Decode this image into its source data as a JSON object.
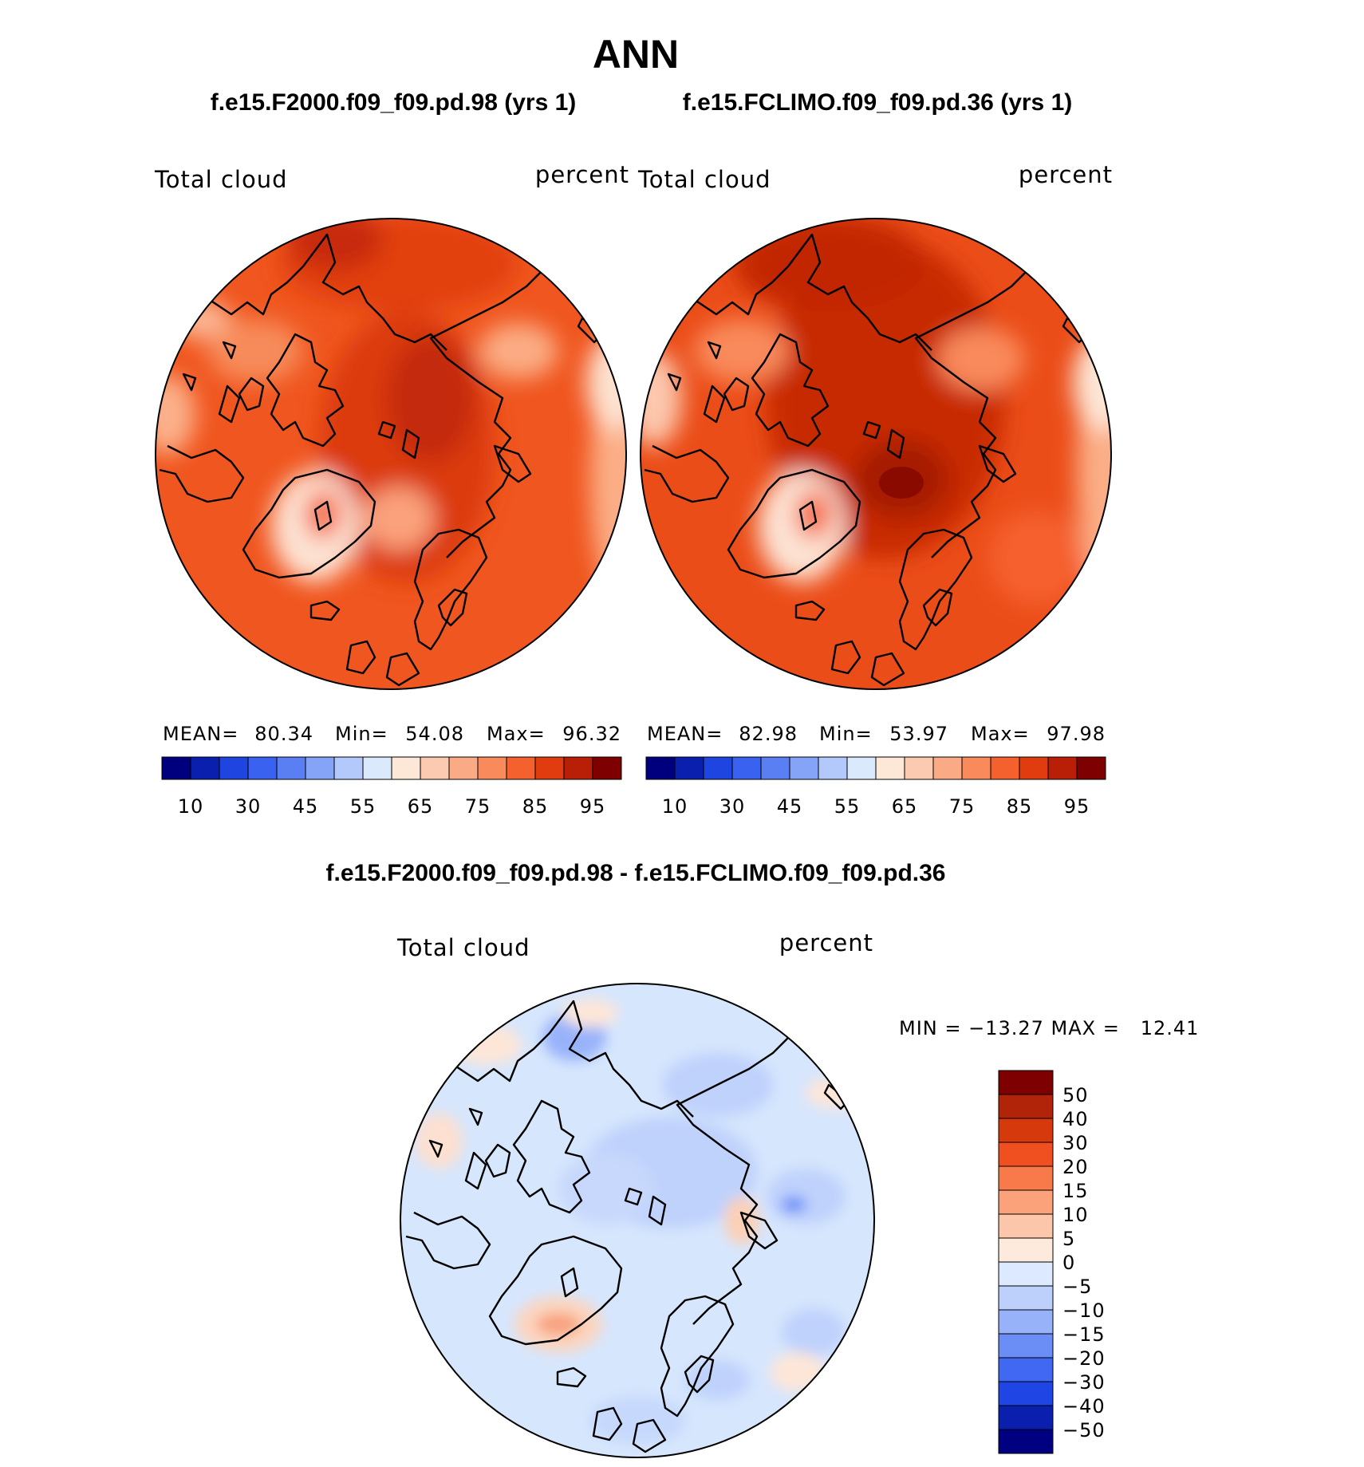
{
  "title": "ANN",
  "colors": {
    "abs_scale": [
      "#00007f",
      "#0a1fae",
      "#1e45e0",
      "#3a62f0",
      "#5a7ff2",
      "#86a4f7",
      "#b3c9fb",
      "#dbe9fd",
      "#fde8d8",
      "#fccab0",
      "#fbaa86",
      "#f98a5c",
      "#f5602f",
      "#e13c10",
      "#b81f06",
      "#7e0000"
    ],
    "diff_scale": [
      "#000080",
      "#0a1fae",
      "#1f46e4",
      "#4068f2",
      "#6a8ef6",
      "#98b2fa",
      "#bdd0fc",
      "#dce9fe",
      "#fdeadd",
      "#fcc6aa",
      "#fba27b",
      "#f87a4a",
      "#f0501f",
      "#d63a0c",
      "#b1240a",
      "#7e0000"
    ],
    "coast": "#000000"
  },
  "panels": [
    {
      "case_title": "f.e15.F2000.f09_f09.pd.98 (yrs 1)",
      "left_label": "Total cloud",
      "right_label": "percent",
      "stats": {
        "mean_label": "MEAN=",
        "mean": "80.34",
        "min_label": "Min=",
        "min": "54.08",
        "max_label": "Max=",
        "max": "96.32"
      },
      "colorbar_ticks": [
        "10",
        "30",
        "45",
        "55",
        "65",
        "75",
        "85",
        "95"
      ]
    },
    {
      "case_title": "f.e15.FCLIMO.f09_f09.pd.36 (yrs 1)",
      "left_label": "Total cloud",
      "right_label": "percent",
      "stats": {
        "mean_label": "MEAN=",
        "mean": "82.98",
        "min_label": "Min=",
        "min": "53.97",
        "max_label": "Max=",
        "max": "97.98"
      },
      "colorbar_ticks": [
        "10",
        "30",
        "45",
        "55",
        "65",
        "75",
        "85",
        "95"
      ]
    }
  ],
  "diff": {
    "title": "f.e15.F2000.f09_f09.pd.98 - f.e15.FCLIMO.f09_f09.pd.36",
    "left_label": "Total cloud",
    "right_label": "percent",
    "minmax": "MIN = −13.27 MAX =   12.41",
    "colorbar_ticks": [
      "50",
      "40",
      "30",
      "20",
      "15",
      "10",
      "5",
      "0",
      "−5",
      "−10",
      "−15",
      "−20",
      "−30",
      "−40",
      "−50"
    ]
  },
  "chart_data": [
    {
      "type": "heatmap",
      "projection": "north-polar-stereographic",
      "title": "f.e15.F2000.f09_f09.pd.98 (yrs 1)",
      "variable": "Total cloud",
      "units": "percent",
      "mean": 80.34,
      "min": 54.08,
      "max": 96.32,
      "contour_levels": [
        10,
        20,
        30,
        40,
        45,
        50,
        55,
        60,
        65,
        70,
        75,
        80,
        85,
        90,
        95
      ],
      "dominant_range": [
        75,
        90
      ]
    },
    {
      "type": "heatmap",
      "projection": "north-polar-stereographic",
      "title": "f.e15.FCLIMO.f09_f09.pd.36 (yrs 1)",
      "variable": "Total cloud",
      "units": "percent",
      "mean": 82.98,
      "min": 53.97,
      "max": 97.98,
      "contour_levels": [
        10,
        20,
        30,
        40,
        45,
        50,
        55,
        60,
        65,
        70,
        75,
        80,
        85,
        90,
        95
      ],
      "dominant_range": [
        80,
        95
      ]
    },
    {
      "type": "heatmap",
      "projection": "north-polar-stereographic",
      "title": "f.e15.F2000.f09_f09.pd.98 - f.e15.FCLIMO.f09_f09.pd.36",
      "variable": "Total cloud",
      "units": "percent",
      "min": -13.27,
      "max": 12.41,
      "contour_levels": [
        -50,
        -40,
        -30,
        -20,
        -15,
        -10,
        -5,
        0,
        5,
        10,
        15,
        20,
        30,
        40,
        50
      ],
      "dominant_range": [
        -5,
        0
      ]
    }
  ]
}
